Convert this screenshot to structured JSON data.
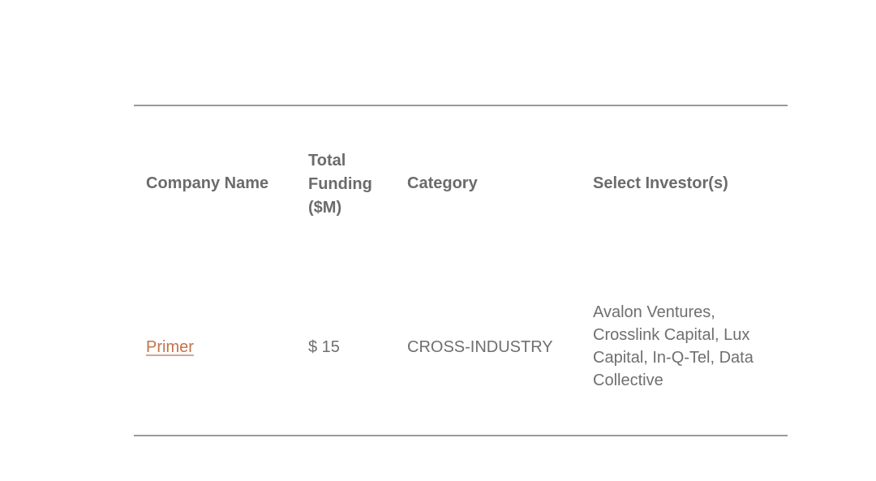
{
  "table": {
    "headers": [
      "Company Name",
      "Total Funding ($M)",
      "Category",
      "Select Investor(s)"
    ],
    "header_lines": {
      "funding": [
        "Total",
        "Funding",
        "($M)"
      ]
    },
    "rows": [
      {
        "company": "Primer",
        "funding": "$ 15",
        "category": "CROSS-INDUSTRY",
        "investor_lines": [
          "Avalon Ventures,",
          "Crosslink Capital, Lux",
          "Capital, In-Q-Tel, Data",
          "Collective"
        ]
      }
    ]
  },
  "colors": {
    "text": "#6f6f6f",
    "link": "#c4714b",
    "rule": "#9a9a9a"
  }
}
